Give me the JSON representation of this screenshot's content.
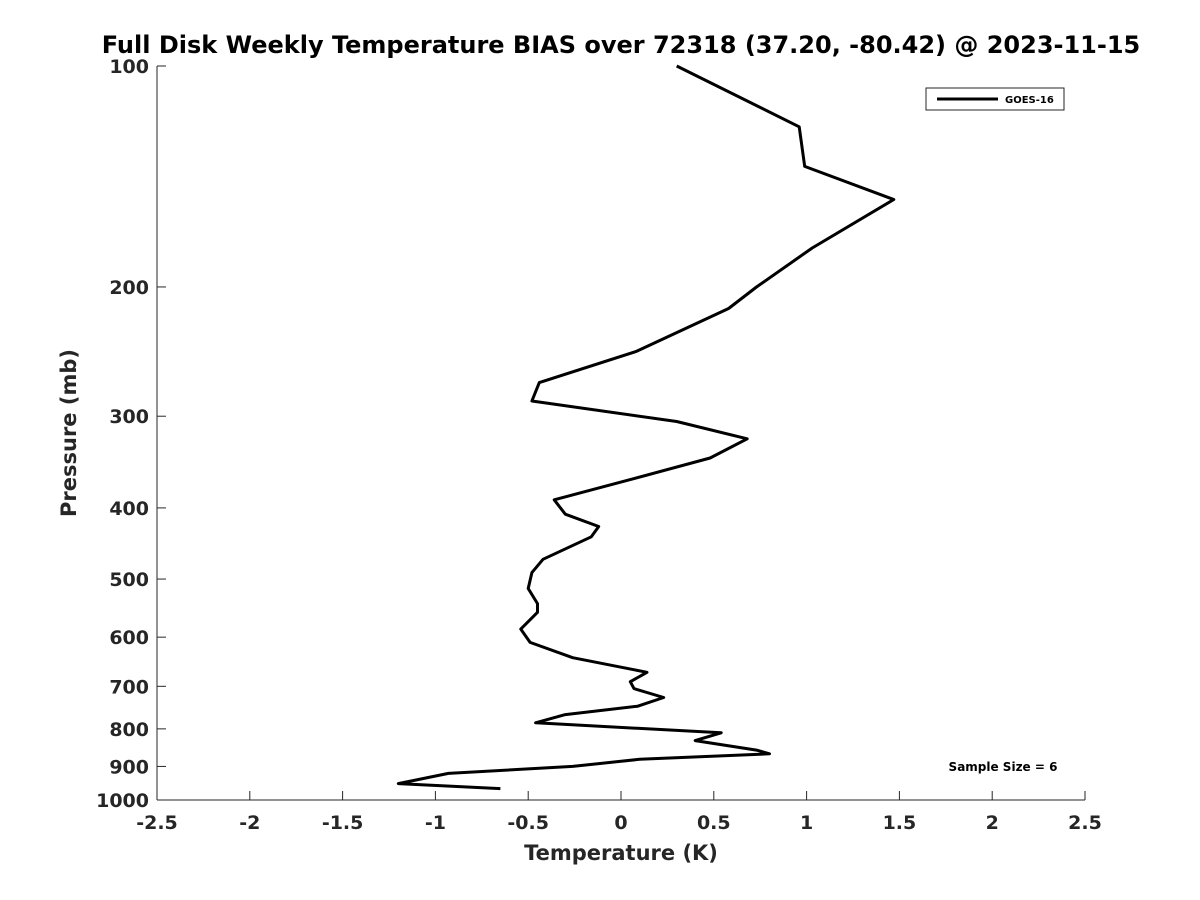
{
  "chart_data": {
    "type": "line",
    "title": "Full Disk Weekly Temperature BIAS over 72318 (37.20, -80.42) @ 2023-11-15",
    "xlabel": "Temperature (K)",
    "ylabel": "Pressure (mb)",
    "xlim": [
      -2.5,
      2.5
    ],
    "ylim": [
      1000,
      100
    ],
    "y_scale": "log",
    "x_ticks": [
      "-2.5",
      "-2",
      "-1.5",
      "-1",
      "-0.5",
      "0",
      "0.5",
      "1",
      "1.5",
      "2",
      "2.5"
    ],
    "y_ticks": [
      "100",
      "200",
      "300",
      "400",
      "500",
      "600",
      "700",
      "800",
      "900",
      "1000"
    ],
    "grid": false,
    "legend_position": "top-right",
    "series": [
      {
        "name": "GOES-16",
        "color": "#000000",
        "x": [
          0.3,
          0.96,
          0.99,
          1.47,
          1.03,
          0.73,
          0.58,
          0.08,
          -0.44,
          -0.48,
          0.3,
          0.68,
          0.48,
          0.05,
          -0.36,
          -0.3,
          -0.12,
          -0.16,
          -0.42,
          -0.48,
          -0.5,
          -0.45,
          -0.45,
          -0.54,
          -0.49,
          -0.26,
          0.14,
          0.05,
          0.07,
          0.23,
          0.09,
          -0.3,
          -0.46,
          0.54,
          0.4,
          0.73,
          0.8,
          0.1,
          -0.26,
          -0.93,
          -1.2,
          -0.65
        ],
        "y": [
          100,
          121,
          137,
          152,
          177,
          200,
          214,
          245,
          270,
          286,
          305,
          322,
          342,
          366,
          390,
          408,
          424,
          438,
          470,
          490,
          515,
          540,
          555,
          585,
          610,
          640,
          670,
          690,
          705,
          725,
          745,
          765,
          785,
          810,
          830,
          855,
          865,
          880,
          900,
          920,
          950,
          965
        ]
      }
    ],
    "annotations": [
      "Sample Size = 6"
    ]
  }
}
